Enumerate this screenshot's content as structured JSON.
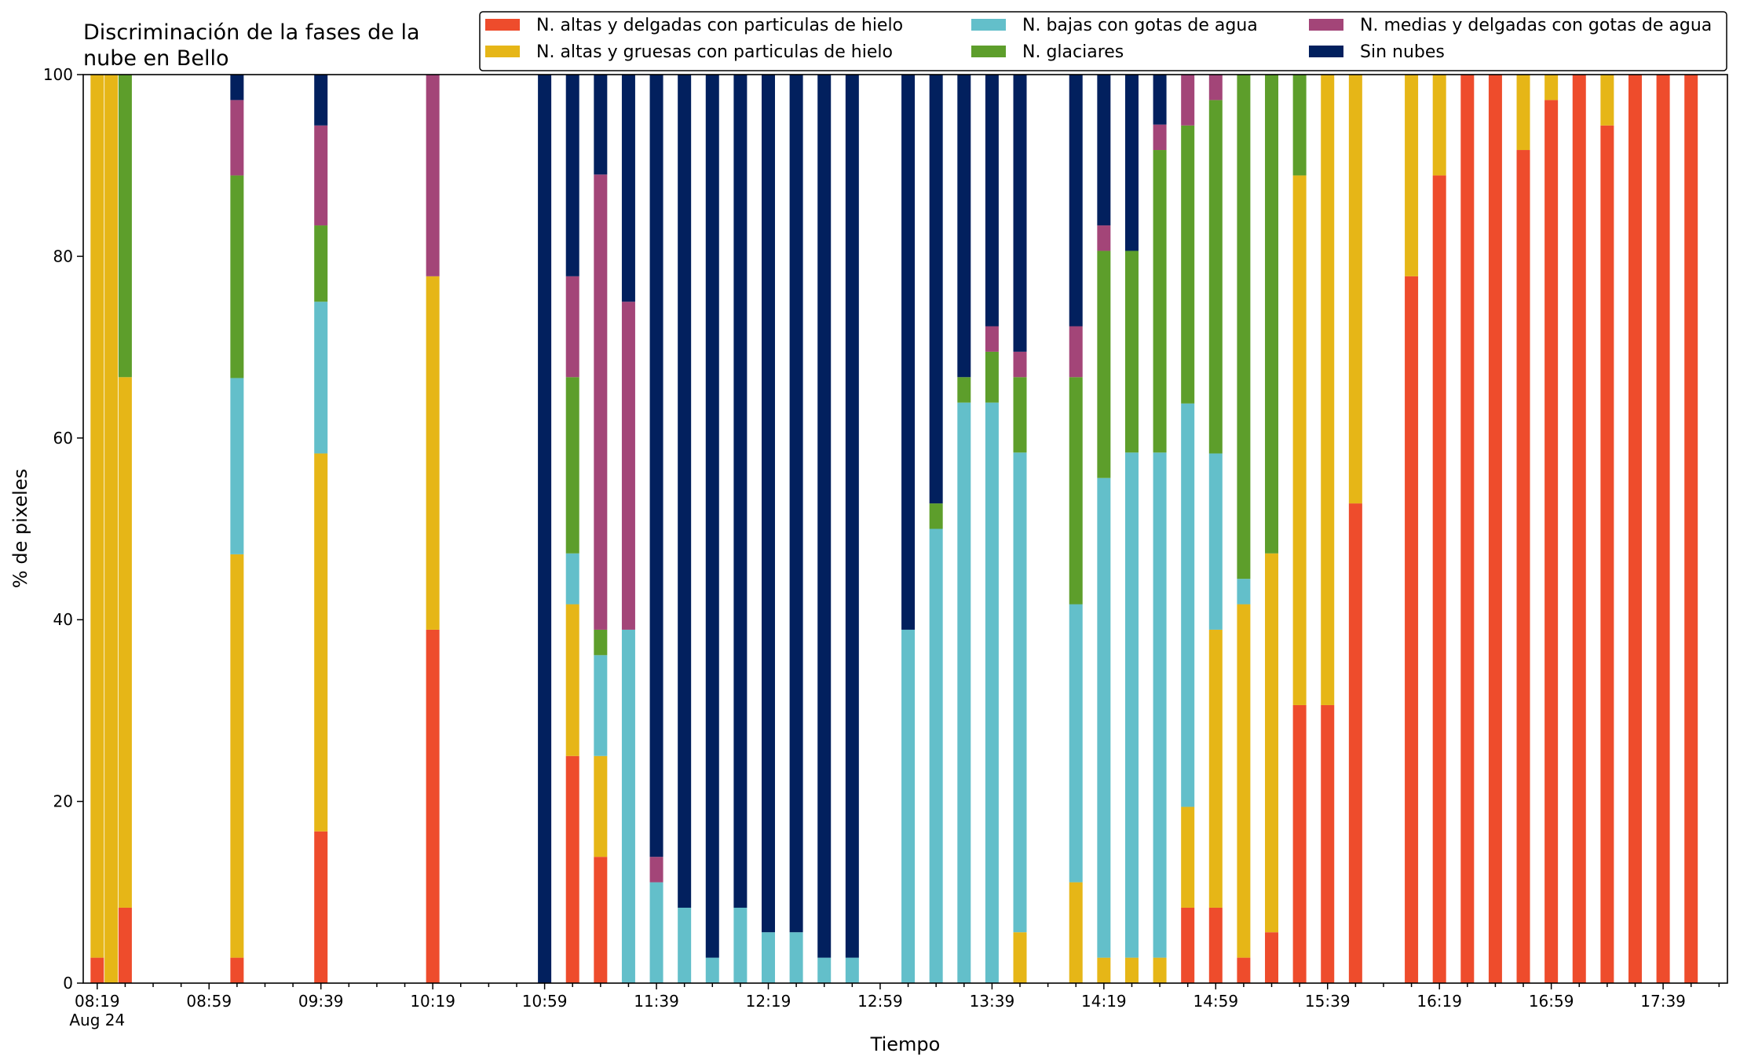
{
  "chart_data": {
    "type": "bar",
    "stacked": true,
    "title": [
      "Discriminación de la fases de la",
      "nube en Bello"
    ],
    "xlabel": "Tiempo",
    "ylabel": "% de pixeles",
    "ylim": [
      0,
      100
    ],
    "yticks": [
      "0",
      "20",
      "40",
      "60",
      "80",
      "100"
    ],
    "xticks": [
      "08:19",
      "08:59",
      "09:39",
      "10:19",
      "10:59",
      "11:39",
      "12:19",
      "12:59",
      "13:39",
      "14:19",
      "14:59",
      "15:39",
      "16:19",
      "16:59",
      "17:39"
    ],
    "xtick_sublabel": "Aug 24",
    "interval_minutes": 10,
    "grid": false,
    "legend_position": "top-right",
    "series": [
      {
        "name": "N. altas y delgadas con particulas de hielo",
        "color": "#ee4c2c"
      },
      {
        "name": "N. altas y gruesas con particulas de hielo",
        "color": "#e6b617"
      },
      {
        "name": "N. bajas con gotas de agua",
        "color": "#63bfca"
      },
      {
        "name": "N. glaciares",
        "color": "#5d9e2b"
      },
      {
        "name": "N. medias y delgadas con gotas de agua",
        "color": "#a34578"
      },
      {
        "name": "Sin nubes",
        "color": "#02205e"
      }
    ],
    "bars": [
      {
        "time": "08:19",
        "values": [
          2.8,
          97.2,
          0,
          0,
          0,
          0
        ]
      },
      {
        "time": "08:24",
        "values": [
          0,
          100,
          0,
          0,
          0,
          0
        ]
      },
      {
        "time": "08:29",
        "values": [
          8.3,
          58.4,
          0,
          33.3,
          0,
          0
        ]
      },
      {
        "time": "09:09",
        "values": [
          2.8,
          44.4,
          19.4,
          22.3,
          8.3,
          2.8
        ]
      },
      {
        "time": "09:39",
        "values": [
          16.7,
          41.6,
          16.7,
          8.4,
          11.0,
          5.6
        ]
      },
      {
        "time": "10:19",
        "values": [
          38.9,
          38.9,
          0,
          0,
          22.2,
          0
        ]
      },
      {
        "time": "10:59",
        "values": [
          0,
          0,
          0,
          0,
          0,
          100
        ]
      },
      {
        "time": "11:09",
        "values": [
          25.0,
          16.7,
          5.6,
          19.4,
          11.1,
          22.2
        ]
      },
      {
        "time": "11:19",
        "values": [
          13.9,
          11.1,
          11.1,
          2.8,
          50.1,
          11.0
        ]
      },
      {
        "time": "11:29",
        "values": [
          0,
          0,
          38.9,
          0,
          36.1,
          25.0
        ]
      },
      {
        "time": "11:39",
        "values": [
          0,
          0,
          11.1,
          0,
          2.8,
          86.1
        ]
      },
      {
        "time": "11:49",
        "values": [
          0,
          0,
          8.3,
          0,
          0,
          91.7
        ]
      },
      {
        "time": "11:59",
        "values": [
          0,
          0,
          2.8,
          0,
          0,
          97.2
        ]
      },
      {
        "time": "12:09",
        "values": [
          0,
          0,
          8.3,
          0,
          0,
          91.7
        ]
      },
      {
        "time": "12:19",
        "values": [
          0,
          0,
          5.6,
          0,
          0,
          94.4
        ]
      },
      {
        "time": "12:29",
        "values": [
          0,
          0,
          5.6,
          0,
          0,
          94.4
        ]
      },
      {
        "time": "12:39",
        "values": [
          0,
          0,
          2.8,
          0,
          0,
          97.2
        ]
      },
      {
        "time": "12:49",
        "values": [
          0,
          0,
          2.8,
          0,
          0,
          97.2
        ]
      },
      {
        "time": "13:09",
        "values": [
          0,
          0,
          38.9,
          0,
          0,
          61.1
        ]
      },
      {
        "time": "13:19",
        "values": [
          0,
          0,
          50.0,
          2.8,
          0,
          47.2
        ]
      },
      {
        "time": "13:29",
        "values": [
          0,
          0,
          63.9,
          2.8,
          0,
          33.3
        ]
      },
      {
        "time": "13:39",
        "values": [
          0,
          0,
          63.9,
          5.6,
          2.8,
          27.7
        ]
      },
      {
        "time": "13:49",
        "values": [
          0,
          5.6,
          52.8,
          8.3,
          2.8,
          30.5
        ]
      },
      {
        "time": "14:09",
        "values": [
          0,
          11.1,
          30.6,
          25.0,
          5.6,
          27.7
        ]
      },
      {
        "time": "14:19",
        "values": [
          0,
          2.8,
          52.8,
          25.0,
          2.8,
          16.6
        ]
      },
      {
        "time": "14:29",
        "values": [
          0,
          2.8,
          55.6,
          22.2,
          0,
          19.4
        ]
      },
      {
        "time": "14:39",
        "values": [
          0,
          2.8,
          55.6,
          33.3,
          2.8,
          5.5
        ]
      },
      {
        "time": "14:49",
        "values": [
          8.3,
          11.1,
          44.4,
          30.6,
          5.6,
          0
        ]
      },
      {
        "time": "14:59",
        "values": [
          8.3,
          30.6,
          19.4,
          38.9,
          2.8,
          0
        ]
      },
      {
        "time": "15:09",
        "values": [
          2.8,
          38.9,
          2.8,
          55.5,
          0,
          0
        ]
      },
      {
        "time": "15:19",
        "values": [
          5.6,
          41.7,
          0,
          52.7,
          0,
          0
        ]
      },
      {
        "time": "15:29",
        "values": [
          30.6,
          58.3,
          0,
          11.1,
          0,
          0
        ]
      },
      {
        "time": "15:39",
        "values": [
          30.6,
          69.4,
          0,
          0,
          0,
          0
        ]
      },
      {
        "time": "15:49",
        "values": [
          52.8,
          47.2,
          0,
          0,
          0,
          0
        ]
      },
      {
        "time": "16:09",
        "values": [
          77.8,
          22.2,
          0,
          0,
          0,
          0
        ]
      },
      {
        "time": "16:19",
        "values": [
          88.9,
          11.1,
          0,
          0,
          0,
          0
        ]
      },
      {
        "time": "16:29",
        "values": [
          100,
          0,
          0,
          0,
          0,
          0
        ]
      },
      {
        "time": "16:39",
        "values": [
          100,
          0,
          0,
          0,
          0,
          0
        ]
      },
      {
        "time": "16:49",
        "values": [
          91.7,
          8.3,
          0,
          0,
          0,
          0
        ]
      },
      {
        "time": "16:59",
        "values": [
          97.2,
          2.8,
          0,
          0,
          0,
          0
        ]
      },
      {
        "time": "17:09",
        "values": [
          100,
          0,
          0,
          0,
          0,
          0
        ]
      },
      {
        "time": "17:19",
        "values": [
          94.4,
          5.6,
          0,
          0,
          0,
          0
        ]
      },
      {
        "time": "17:29",
        "values": [
          100,
          0,
          0,
          0,
          0,
          0
        ]
      },
      {
        "time": "17:39",
        "values": [
          100,
          0,
          0,
          0,
          0,
          0
        ]
      },
      {
        "time": "17:49",
        "values": [
          100,
          0,
          0,
          0,
          0,
          0
        ]
      }
    ]
  }
}
